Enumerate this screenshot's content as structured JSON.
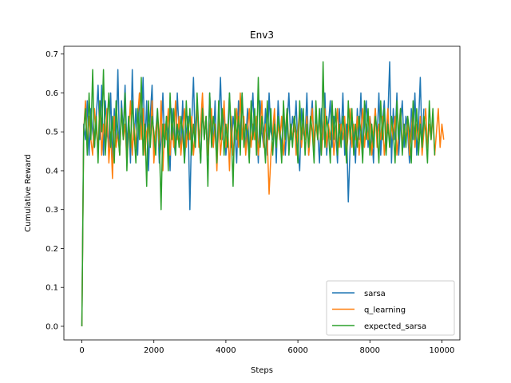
{
  "chart_data": {
    "type": "line",
    "title": "Env3",
    "xlabel": "Steps",
    "ylabel": "Cumulative Reward",
    "xlim": [
      -500,
      10500
    ],
    "ylim": [
      -0.035,
      0.72
    ],
    "xticks": [
      0,
      2000,
      4000,
      6000,
      8000,
      10000
    ],
    "xtick_labels": [
      "0",
      "2000",
      "4000",
      "6000",
      "8000",
      "10000"
    ],
    "yticks": [
      0.0,
      0.1,
      0.2,
      0.3,
      0.4,
      0.5,
      0.6,
      0.7
    ],
    "ytick_labels": [
      "0.0",
      "0.1",
      "0.2",
      "0.3",
      "0.4",
      "0.5",
      "0.6",
      "0.7"
    ],
    "grid": false,
    "legend_position": "lower-right",
    "x_step": 50,
    "series": [
      {
        "name": "sarsa",
        "color": "#1f77b4",
        "values": [
          0.0,
          0.52,
          0.48,
          0.58,
          0.44,
          0.56,
          0.5,
          0.46,
          0.54,
          0.62,
          0.48,
          0.62,
          0.44,
          0.58,
          0.5,
          0.46,
          0.6,
          0.42,
          0.56,
          0.48,
          0.66,
          0.44,
          0.58,
          0.5,
          0.62,
          0.46,
          0.54,
          0.42,
          0.66,
          0.48,
          0.56,
          0.44,
          0.6,
          0.5,
          0.64,
          0.46,
          0.58,
          0.4,
          0.54,
          0.62,
          0.44,
          0.5,
          0.56,
          0.42,
          0.48,
          0.6,
          0.46,
          0.54,
          0.5,
          0.4,
          0.56,
          0.48,
          0.44,
          0.6,
          0.5,
          0.46,
          0.58,
          0.42,
          0.5,
          0.54,
          0.3,
          0.52,
          0.64,
          0.46,
          0.56,
          0.5,
          0.42,
          0.58,
          0.48,
          0.54,
          0.44,
          0.6,
          0.5,
          0.46,
          0.58,
          0.42,
          0.52,
          0.64,
          0.48,
          0.56,
          0.44,
          0.5,
          0.6,
          0.46,
          0.54,
          0.5,
          0.42,
          0.58,
          0.48,
          0.6,
          0.5,
          0.46,
          0.56,
          0.44,
          0.52,
          0.6,
          0.48,
          0.54,
          0.42,
          0.58,
          0.5,
          0.46,
          0.56,
          0.44,
          0.6,
          0.5,
          0.48,
          0.54,
          0.42,
          0.58,
          0.5,
          0.46,
          0.56,
          0.44,
          0.52,
          0.6,
          0.48,
          0.54,
          0.5,
          0.58,
          0.46,
          0.4,
          0.56,
          0.5,
          0.48,
          0.6,
          0.44,
          0.52,
          0.58,
          0.46,
          0.54,
          0.5,
          0.42,
          0.56,
          0.48,
          0.6,
          0.44,
          0.52,
          0.58,
          0.46,
          0.54,
          0.5,
          0.42,
          0.56,
          0.48,
          0.6,
          0.44,
          0.52,
          0.32,
          0.46,
          0.54,
          0.5,
          0.42,
          0.56,
          0.48,
          0.6,
          0.44,
          0.52,
          0.58,
          0.46,
          0.54,
          0.5,
          0.42,
          0.56,
          0.48,
          0.6,
          0.44,
          0.52,
          0.58,
          0.46,
          0.54,
          0.68,
          0.42,
          0.56,
          0.48,
          0.6,
          0.44,
          0.52,
          0.58,
          0.46,
          0.54,
          0.5,
          0.42,
          0.56,
          0.48,
          0.6,
          0.44,
          0.52,
          0.64,
          0.46,
          0.56
        ]
      },
      {
        "name": "q_learning",
        "color": "#ff7f0e",
        "values": [
          0.0,
          0.5,
          0.58,
          0.46,
          0.54,
          0.48,
          0.44,
          0.56,
          0.5,
          0.46,
          0.58,
          0.44,
          0.52,
          0.48,
          0.56,
          0.42,
          0.5,
          0.38,
          0.54,
          0.46,
          0.5,
          0.44,
          0.56,
          0.48,
          0.52,
          0.42,
          0.5,
          0.58,
          0.44,
          0.52,
          0.46,
          0.54,
          0.6,
          0.48,
          0.56,
          0.44,
          0.5,
          0.52,
          0.46,
          0.58,
          0.42,
          0.5,
          0.54,
          0.46,
          0.58,
          0.4,
          0.52,
          0.48,
          0.56,
          0.44,
          0.52,
          0.46,
          0.58,
          0.48,
          0.54,
          0.44,
          0.5,
          0.56,
          0.46,
          0.52,
          0.48,
          0.54,
          0.44,
          0.5,
          0.58,
          0.46,
          0.52,
          0.6,
          0.48,
          0.54,
          0.44,
          0.5,
          0.56,
          0.46,
          0.52,
          0.4,
          0.54,
          0.44,
          0.5,
          0.58,
          0.46,
          0.52,
          0.4,
          0.54,
          0.44,
          0.5,
          0.56,
          0.46,
          0.6,
          0.48,
          0.54,
          0.44,
          0.5,
          0.56,
          0.46,
          0.52,
          0.48,
          0.54,
          0.44,
          0.5,
          0.58,
          0.46,
          0.52,
          0.48,
          0.34,
          0.44,
          0.5,
          0.56,
          0.46,
          0.52,
          0.48,
          0.54,
          0.44,
          0.5,
          0.56,
          0.46,
          0.52,
          0.48,
          0.54,
          0.44,
          0.5,
          0.56,
          0.46,
          0.52,
          0.48,
          0.54,
          0.44,
          0.5,
          0.56,
          0.46,
          0.52,
          0.48,
          0.54,
          0.44,
          0.5,
          0.56,
          0.46,
          0.52,
          0.48,
          0.54,
          0.44,
          0.5,
          0.56,
          0.46,
          0.52,
          0.48,
          0.54,
          0.44,
          0.5,
          0.56,
          0.46,
          0.52,
          0.48,
          0.54,
          0.44,
          0.5,
          0.56,
          0.46,
          0.52,
          0.48,
          0.54,
          0.44,
          0.5,
          0.56,
          0.46,
          0.52,
          0.48,
          0.54,
          0.44,
          0.5,
          0.56,
          0.46,
          0.52,
          0.48,
          0.54,
          0.44,
          0.5,
          0.56,
          0.46,
          0.52,
          0.48,
          0.54,
          0.44,
          0.5,
          0.56,
          0.46,
          0.52,
          0.48,
          0.54,
          0.44,
          0.5,
          0.56,
          0.46,
          0.52,
          0.48,
          0.54,
          0.44,
          0.5,
          0.56,
          0.46,
          0.52,
          0.48
        ]
      },
      {
        "name": "expected_sarsa",
        "color": "#2ca02c",
        "values": [
          0.0,
          0.5,
          0.56,
          0.44,
          0.6,
          0.48,
          0.66,
          0.46,
          0.54,
          0.42,
          0.58,
          0.5,
          0.66,
          0.44,
          0.52,
          0.6,
          0.46,
          0.54,
          0.42,
          0.58,
          0.5,
          0.44,
          0.56,
          0.48,
          0.6,
          0.4,
          0.54,
          0.46,
          0.58,
          0.5,
          0.42,
          0.56,
          0.48,
          0.64,
          0.44,
          0.52,
          0.36,
          0.58,
          0.46,
          0.54,
          0.5,
          0.44,
          0.56,
          0.48,
          0.3,
          0.52,
          0.46,
          0.54,
          0.4,
          0.6,
          0.48,
          0.56,
          0.44,
          0.52,
          0.46,
          0.54,
          0.5,
          0.42,
          0.58,
          0.48,
          0.56,
          0.44,
          0.52,
          0.46,
          0.6,
          0.5,
          0.42,
          0.56,
          0.48,
          0.54,
          0.36,
          0.6,
          0.46,
          0.54,
          0.5,
          0.42,
          0.58,
          0.48,
          0.56,
          0.44,
          0.52,
          0.46,
          0.6,
          0.5,
          0.36,
          0.56,
          0.48,
          0.54,
          0.44,
          0.6,
          0.46,
          0.52,
          0.5,
          0.42,
          0.58,
          0.48,
          0.56,
          0.44,
          0.64,
          0.46,
          0.54,
          0.5,
          0.42,
          0.58,
          0.48,
          0.56,
          0.44,
          0.52,
          0.46,
          0.54,
          0.5,
          0.42,
          0.58,
          0.48,
          0.56,
          0.44,
          0.52,
          0.46,
          0.54,
          0.5,
          0.42,
          0.58,
          0.48,
          0.56,
          0.44,
          0.52,
          0.46,
          0.54,
          0.5,
          0.42,
          0.58,
          0.48,
          0.56,
          0.44,
          0.68,
          0.46,
          0.54,
          0.5,
          0.42,
          0.58,
          0.48,
          0.56,
          0.44,
          0.52,
          0.46,
          0.54,
          0.5,
          0.42,
          0.58,
          0.48,
          0.56,
          0.44,
          0.52,
          0.46,
          0.54,
          0.5,
          0.42,
          0.58,
          0.48,
          0.56,
          0.44,
          0.52,
          0.46,
          0.54,
          0.5,
          0.42,
          0.58,
          0.48,
          0.56,
          0.44,
          0.52,
          0.46,
          0.54,
          0.5,
          0.42,
          0.58,
          0.48,
          0.56,
          0.44,
          0.52,
          0.46,
          0.54,
          0.5,
          0.42,
          0.58,
          0.48,
          0.56,
          0.44,
          0.52,
          0.46,
          0.54,
          0.5,
          0.42,
          0.58,
          0.48,
          0.56,
          0.44
        ]
      }
    ]
  }
}
